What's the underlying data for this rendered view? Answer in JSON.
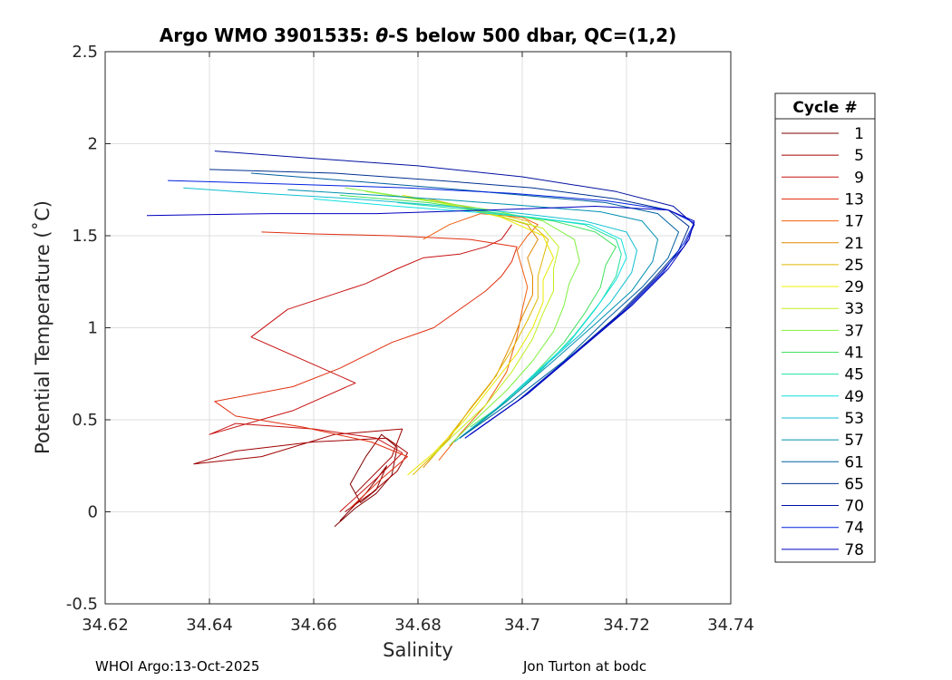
{
  "chart_data": {
    "type": "line",
    "title_prefix": "Argo WMO 3901535: ",
    "title_theta": "θ",
    "title_suffix": "-S below 500 dbar,  QC=(1,2)",
    "xlabel": "Salinity",
    "ylabel": "Potential Temperature (˚C)",
    "xlim": [
      34.62,
      34.74
    ],
    "ylim": [
      -0.5,
      2.5
    ],
    "xticks": [
      34.62,
      34.64,
      34.66,
      34.68,
      34.7,
      34.72,
      34.74
    ],
    "xtick_labels": [
      "34.62",
      "34.64",
      "34.66",
      "34.68",
      "34.7",
      "34.72",
      "34.74"
    ],
    "yticks": [
      -0.5,
      0,
      0.5,
      1,
      1.5,
      2,
      2.5
    ],
    "ytick_labels": [
      "-0.5",
      "0",
      "0.5",
      "1",
      "1.5",
      "2",
      "2.5"
    ],
    "grid": true,
    "legend": {
      "title": "Cycle #",
      "position": "right",
      "entries": [
        {
          "label": "1",
          "color": "#800000"
        },
        {
          "label": "5",
          "color": "#a00000"
        },
        {
          "label": "9",
          "color": "#c81010"
        },
        {
          "label": "13",
          "color": "#e03010"
        },
        {
          "label": "17",
          "color": "#f06010"
        },
        {
          "label": "21",
          "color": "#e08a00"
        },
        {
          "label": "25",
          "color": "#e0b800"
        },
        {
          "label": "29",
          "color": "#f0f000"
        },
        {
          "label": "33",
          "color": "#c0f020"
        },
        {
          "label": "37",
          "color": "#80f040"
        },
        {
          "label": "41",
          "color": "#40e060"
        },
        {
          "label": "45",
          "color": "#20e0a0"
        },
        {
          "label": "49",
          "color": "#10e0e0"
        },
        {
          "label": "53",
          "color": "#10c0d0"
        },
        {
          "label": "57",
          "color": "#0090b0"
        },
        {
          "label": "61",
          "color": "#0060a0"
        },
        {
          "label": "65",
          "color": "#003090"
        },
        {
          "label": "70",
          "color": "#0010a0"
        },
        {
          "label": "74",
          "color": "#0020e0"
        },
        {
          "label": "78",
          "color": "#0000c0"
        }
      ]
    },
    "series": [
      {
        "name": "1",
        "color": "#800000",
        "x": [
          34.664,
          34.668,
          34.672,
          34.675,
          34.676,
          34.673,
          34.67,
          34.667,
          34.669,
          34.672,
          34.674,
          34.67,
          34.665
        ],
        "y": [
          -0.08,
          0.02,
          0.1,
          0.2,
          0.35,
          0.42,
          0.3,
          0.15,
          0.05,
          0.12,
          0.25,
          0.1,
          -0.05
        ]
      },
      {
        "name": "5",
        "color": "#a00000",
        "x": [
          34.666,
          34.671,
          34.676,
          34.678,
          34.674,
          34.66,
          34.645,
          34.637,
          34.65,
          34.664,
          34.677,
          34.675,
          34.668
        ],
        "y": [
          0.0,
          0.1,
          0.22,
          0.32,
          0.4,
          0.38,
          0.33,
          0.26,
          0.3,
          0.42,
          0.45,
          0.3,
          0.1
        ]
      },
      {
        "name": "9",
        "color": "#c81010",
        "x": [
          34.665,
          34.672,
          34.677,
          34.672,
          34.66,
          34.645,
          34.64,
          34.656,
          34.668,
          34.66,
          34.648,
          34.655,
          34.67,
          34.676,
          34.681,
          34.688,
          34.693,
          34.696,
          34.697,
          34.698
        ],
        "y": [
          0.0,
          0.18,
          0.32,
          0.4,
          0.45,
          0.48,
          0.42,
          0.55,
          0.7,
          0.8,
          0.95,
          1.1,
          1.24,
          1.32,
          1.38,
          1.4,
          1.44,
          1.48,
          1.52,
          1.56
        ]
      },
      {
        "name": "13",
        "color": "#e03010",
        "x": [
          34.667,
          34.673,
          34.678,
          34.671,
          34.658,
          34.645,
          34.641,
          34.656,
          34.665,
          34.67,
          34.675,
          34.68,
          34.683,
          34.687,
          34.69,
          34.693,
          34.696,
          34.698,
          34.699,
          34.69,
          34.675,
          34.66,
          34.65
        ],
        "y": [
          0.02,
          0.18,
          0.3,
          0.38,
          0.46,
          0.52,
          0.6,
          0.68,
          0.78,
          0.85,
          0.92,
          0.97,
          1.0,
          1.08,
          1.14,
          1.2,
          1.28,
          1.36,
          1.44,
          1.48,
          1.5,
          1.51,
          1.52
        ]
      },
      {
        "name": "17",
        "color": "#f06010",
        "x": [
          34.684,
          34.688,
          34.693,
          34.697,
          34.699,
          34.7,
          34.701,
          34.7,
          34.699,
          34.701,
          34.703,
          34.7,
          34.692,
          34.686,
          34.681
        ],
        "y": [
          0.28,
          0.42,
          0.58,
          0.76,
          0.95,
          1.1,
          1.22,
          1.32,
          1.42,
          1.5,
          1.56,
          1.6,
          1.62,
          1.56,
          1.48
        ]
      },
      {
        "name": "21",
        "color": "#e08a00",
        "x": [
          34.681,
          34.686,
          34.69,
          34.695,
          34.698,
          34.7,
          34.702,
          34.702,
          34.701,
          34.703,
          34.701,
          34.694,
          34.686
        ],
        "y": [
          0.24,
          0.4,
          0.56,
          0.74,
          0.92,
          1.06,
          1.18,
          1.28,
          1.38,
          1.48,
          1.56,
          1.62,
          1.67
        ]
      },
      {
        "name": "25",
        "color": "#e0b800",
        "x": [
          34.679,
          34.684,
          34.689,
          34.694,
          34.698,
          34.701,
          34.703,
          34.703,
          34.704,
          34.705,
          34.701,
          34.692,
          34.682
        ],
        "y": [
          0.2,
          0.34,
          0.52,
          0.7,
          0.88,
          1.04,
          1.16,
          1.28,
          1.38,
          1.48,
          1.58,
          1.64,
          1.7
        ]
      },
      {
        "name": "29",
        "color": "#e8e800",
        "x": [
          34.678,
          34.683,
          34.689,
          34.694,
          34.699,
          34.702,
          34.704,
          34.704,
          34.706,
          34.704,
          34.696,
          34.686,
          34.677
        ],
        "y": [
          0.2,
          0.32,
          0.5,
          0.68,
          0.86,
          1.0,
          1.14,
          1.26,
          1.38,
          1.5,
          1.6,
          1.67,
          1.72
        ]
      },
      {
        "name": "33",
        "color": "#c0f020",
        "x": [
          34.682,
          34.687,
          34.693,
          34.698,
          34.702,
          34.704,
          34.706,
          34.706,
          34.707,
          34.704,
          34.694,
          34.684,
          34.67
        ],
        "y": [
          0.28,
          0.42,
          0.58,
          0.76,
          0.94,
          1.08,
          1.2,
          1.32,
          1.44,
          1.54,
          1.62,
          1.68,
          1.74
        ]
      },
      {
        "name": "37",
        "color": "#80f040",
        "x": [
          34.686,
          34.691,
          34.697,
          34.702,
          34.706,
          34.708,
          34.709,
          34.711,
          34.71,
          34.704,
          34.694,
          34.68,
          34.666
        ],
        "y": [
          0.36,
          0.5,
          0.66,
          0.82,
          0.98,
          1.12,
          1.24,
          1.36,
          1.48,
          1.58,
          1.64,
          1.7,
          1.76
        ]
      },
      {
        "name": "41",
        "color": "#40e060",
        "x": [
          34.69,
          34.696,
          34.702,
          34.708,
          34.712,
          34.715,
          34.716,
          34.718,
          34.714,
          34.706,
          34.696,
          34.682,
          34.665
        ],
        "y": [
          0.46,
          0.58,
          0.74,
          0.92,
          1.08,
          1.22,
          1.34,
          1.44,
          1.52,
          1.58,
          1.62,
          1.68,
          1.72
        ]
      },
      {
        "name": "45",
        "color": "#20e0a0",
        "x": [
          34.69,
          34.697,
          34.704,
          34.71,
          34.715,
          34.718,
          34.719,
          34.718,
          34.712,
          34.702,
          34.69,
          34.676
        ],
        "y": [
          0.44,
          0.6,
          0.78,
          0.96,
          1.14,
          1.28,
          1.4,
          1.48,
          1.56,
          1.6,
          1.64,
          1.68
        ]
      },
      {
        "name": "49",
        "color": "#10e0e0",
        "x": [
          34.688,
          34.695,
          34.702,
          34.709,
          34.714,
          34.718,
          34.72,
          34.719,
          34.713,
          34.702,
          34.69,
          34.676,
          34.66
        ],
        "y": [
          0.4,
          0.56,
          0.74,
          0.92,
          1.1,
          1.26,
          1.38,
          1.48,
          1.56,
          1.6,
          1.63,
          1.66,
          1.7
        ]
      },
      {
        "name": "53",
        "color": "#10c0d0",
        "x": [
          34.687,
          34.695,
          34.703,
          34.711,
          34.717,
          34.721,
          34.722,
          34.72,
          34.712,
          34.7,
          34.686,
          34.668,
          34.65,
          34.635
        ],
        "y": [
          0.38,
          0.56,
          0.76,
          0.96,
          1.14,
          1.3,
          1.42,
          1.52,
          1.58,
          1.62,
          1.66,
          1.7,
          1.73,
          1.76
        ]
      },
      {
        "name": "57",
        "color": "#0090b0",
        "x": [
          34.688,
          34.697,
          34.706,
          34.714,
          34.721,
          34.725,
          34.726,
          34.723,
          34.715,
          34.702,
          34.688,
          34.672,
          34.655
        ],
        "y": [
          0.4,
          0.6,
          0.82,
          1.02,
          1.2,
          1.36,
          1.48,
          1.58,
          1.63,
          1.66,
          1.69,
          1.72,
          1.75
        ]
      },
      {
        "name": "61",
        "color": "#0060a0",
        "x": [
          34.688,
          34.698,
          34.708,
          34.716,
          34.723,
          34.728,
          34.73,
          34.726,
          34.716,
          34.7,
          34.684,
          34.666,
          34.648
        ],
        "y": [
          0.4,
          0.6,
          0.82,
          1.04,
          1.22,
          1.38,
          1.52,
          1.62,
          1.68,
          1.72,
          1.76,
          1.8,
          1.84
        ]
      },
      {
        "name": "65",
        "color": "#003090",
        "x": [
          34.689,
          34.699,
          34.709,
          34.718,
          34.725,
          34.73,
          34.732,
          34.728,
          34.718,
          34.702,
          34.684,
          34.664,
          34.64
        ],
        "y": [
          0.4,
          0.6,
          0.84,
          1.06,
          1.26,
          1.42,
          1.55,
          1.64,
          1.7,
          1.76,
          1.8,
          1.84,
          1.86
        ]
      },
      {
        "name": "70",
        "color": "#0010a0",
        "x": [
          34.69,
          34.7,
          34.71,
          34.719,
          34.726,
          34.731,
          34.733,
          34.729,
          34.718,
          34.7,
          34.68,
          34.66,
          34.641
        ],
        "y": [
          0.42,
          0.62,
          0.86,
          1.08,
          1.28,
          1.44,
          1.56,
          1.66,
          1.74,
          1.82,
          1.88,
          1.92,
          1.96
        ]
      },
      {
        "name": "74",
        "color": "#0020e0",
        "x": [
          34.689,
          34.7,
          34.71,
          34.72,
          34.727,
          34.731,
          34.733,
          34.728,
          34.716,
          34.698,
          34.678,
          34.656,
          34.632
        ],
        "y": [
          0.4,
          0.62,
          0.86,
          1.1,
          1.3,
          1.46,
          1.57,
          1.64,
          1.69,
          1.73,
          1.76,
          1.78,
          1.8
        ]
      },
      {
        "name": "78",
        "color": "#0000c0",
        "x": [
          34.69,
          34.701,
          34.711,
          34.721,
          34.728,
          34.732,
          34.733,
          34.728,
          34.714,
          34.694,
          34.672,
          34.652,
          34.628
        ],
        "y": [
          0.42,
          0.64,
          0.88,
          1.12,
          1.32,
          1.48,
          1.58,
          1.64,
          1.66,
          1.64,
          1.62,
          1.62,
          1.61
        ]
      }
    ]
  },
  "footer": {
    "left": "WHOI Argo:13-Oct-2025",
    "right": "Jon Turton at bodc"
  }
}
